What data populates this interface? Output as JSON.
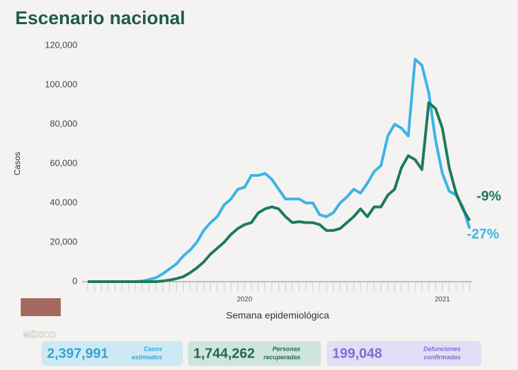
{
  "header": {
    "title": "Escenario nacional"
  },
  "chart_data": {
    "type": "line",
    "ylabel": "Casos",
    "xlabel": "Semana epidemiológica",
    "categories": [
      null,
      null,
      null,
      null,
      null,
      null,
      null,
      null,
      null,
      null,
      null,
      null,
      null,
      null,
      null,
      null,
      null,
      null,
      null,
      null,
      null,
      null,
      null,
      "2020",
      null,
      null,
      null,
      null,
      null,
      null,
      null,
      null,
      null,
      null,
      null,
      null,
      null,
      null,
      null,
      null,
      null,
      null,
      null,
      null,
      null,
      null,
      null,
      null,
      null,
      null,
      null,
      null,
      "2021",
      null,
      null,
      null,
      null
    ],
    "series": [
      {
        "color": "#3db4e4",
        "values": [
          0,
          0,
          0,
          0,
          0,
          0,
          0,
          0,
          300,
          1000,
          2000,
          4000,
          6500,
          9000,
          13000,
          16000,
          20000,
          26000,
          30000,
          33000,
          39000,
          42000,
          47000,
          48000,
          54000,
          54000,
          55000,
          52000,
          47000,
          42000,
          42000,
          42000,
          40000,
          40000,
          34000,
          33000,
          35000,
          40000,
          43000,
          47000,
          45000,
          50000,
          56000,
          59000,
          74000,
          80000,
          78000,
          74000,
          113000,
          110000,
          96000,
          72000,
          55000,
          46000,
          44000,
          38000,
          27000
        ]
      },
      {
        "color": "#1e7a5b",
        "values": [
          0,
          0,
          0,
          0,
          0,
          0,
          0,
          0,
          0,
          0,
          0,
          300,
          800,
          1500,
          2500,
          4500,
          7000,
          10000,
          14000,
          17000,
          20000,
          24000,
          27000,
          29000,
          30000,
          35000,
          37000,
          38000,
          37000,
          33000,
          30000,
          30500,
          30000,
          30000,
          29000,
          26000,
          26000,
          27000,
          30000,
          33000,
          37000,
          33000,
          38000,
          38000,
          44000,
          47000,
          58000,
          64000,
          62000,
          57000,
          91000,
          88000,
          78000,
          58000,
          45000,
          37000,
          31000
        ]
      }
    ],
    "annotations": [
      {
        "text": "-9%",
        "color": "#1e7a5b"
      },
      {
        "text": "-27%",
        "color": "#3db4e4"
      }
    ],
    "ylim": [
      0,
      120000
    ],
    "yticks": [
      0,
      {
        "value": 20000,
        "label": "20,000"
      },
      {
        "value": 40000,
        "label": "40,000"
      },
      {
        "value": 60000,
        "label": "60,000"
      },
      {
        "value": 80000,
        "label": "80,000"
      },
      {
        "value": 100000,
        "label": "100,000"
      },
      {
        "value": 120000,
        "label": "120,000"
      }
    ],
    "grid": false
  },
  "cards": [
    {
      "value": "2,397,991",
      "label": [
        "Casos",
        "estimados"
      ]
    },
    {
      "value": "1,744,262",
      "label": [
        "Personas",
        "recuperadas"
      ]
    },
    {
      "value": "199,048",
      "label": [
        "Defunciones",
        "confirmadas"
      ]
    }
  ],
  "logo": {
    "text": "MÉXICO"
  }
}
